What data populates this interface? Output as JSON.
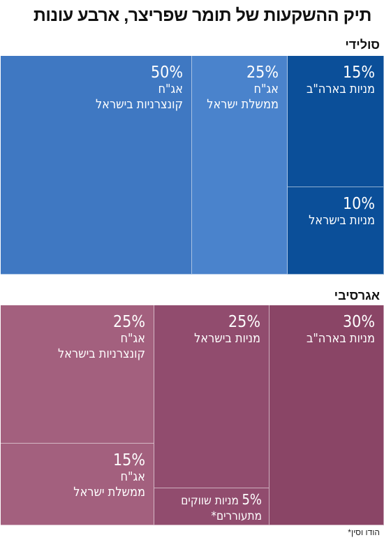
{
  "title": "תיק ההשקעות של תומר שפריצר, ארבע עונות",
  "credit": "הודו וסין*",
  "chart_data": [
    {
      "type": "treemap",
      "section": "סולידי",
      "colors": {
        "fill": "#3f78c2",
        "dark": "#0c4f96"
      },
      "tiles": [
        {
          "value": 50,
          "pct": "50%",
          "label": "אג\"ח\nקונצרניות בישראל",
          "color": "#3f78c2"
        },
        {
          "value": 25,
          "pct": "25%",
          "label": "אג\"ח\nממשלת ישראל",
          "color": "#4a83cc"
        },
        {
          "value": 15,
          "pct": "15%",
          "label": "מניות בארה\"ב",
          "color": "#0b4f99"
        },
        {
          "value": 10,
          "pct": "10%",
          "label": "מניות בישראל",
          "color": "#0b4f99"
        }
      ]
    },
    {
      "type": "treemap",
      "section": "אגרסיבי",
      "colors": {
        "fill": "#a3607e",
        "dark": "#8a4566"
      },
      "tiles": [
        {
          "value": 25,
          "pct": "25%",
          "label": "אג\"ח\nקונצרניות בישראל",
          "color": "#a3607e"
        },
        {
          "value": 15,
          "pct": "15%",
          "label": "אג\"ח\nממשלת ישראל",
          "color": "#a3607e"
        },
        {
          "value": 25,
          "pct": "25%",
          "label": "מניות בישראל",
          "color": "#914c6e"
        },
        {
          "value": 5,
          "pct": "5%",
          "label": "מניות שווקים מתעוררים*",
          "color": "#914c6e"
        },
        {
          "value": 30,
          "pct": "30%",
          "label": "מניות בארה\"ב",
          "color": "#8a4566"
        }
      ]
    }
  ]
}
